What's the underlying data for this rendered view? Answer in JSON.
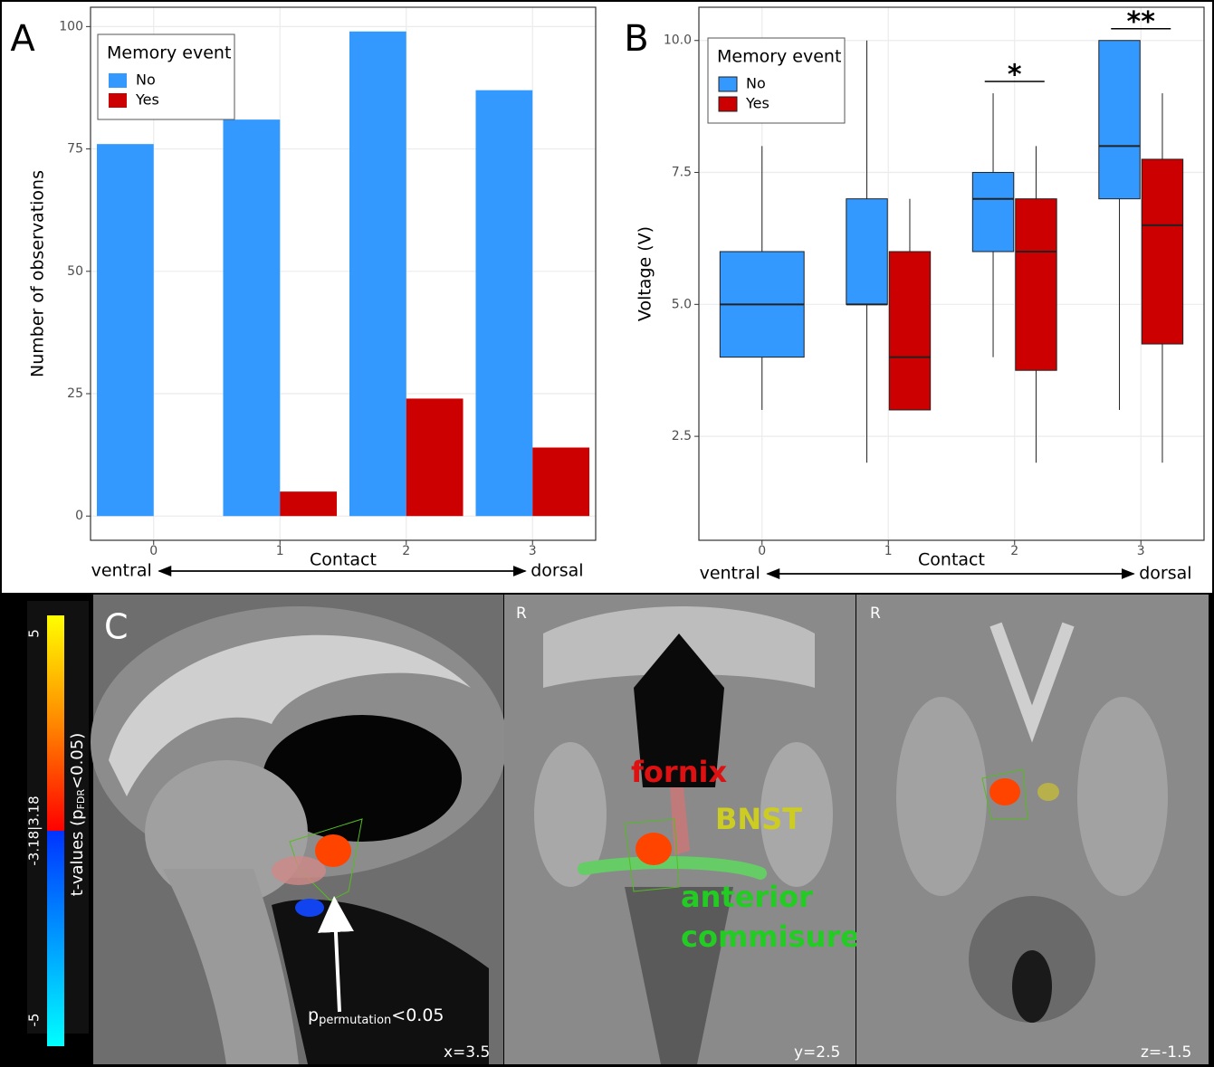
{
  "chart_data": [
    {
      "type": "bar",
      "panel_label": "A",
      "categories": [
        "0",
        "1",
        "2",
        "3"
      ],
      "series": [
        {
          "name": "No",
          "color": "#3399ff",
          "values": [
            76,
            81,
            99,
            87
          ]
        },
        {
          "name": "Yes",
          "color": "#cc0000",
          "values": [
            0,
            5,
            24,
            14
          ]
        }
      ],
      "ylim": [
        -4.95,
        103.95
      ],
      "yticks": [
        0,
        25,
        50,
        75,
        100
      ],
      "grid": true,
      "y_label": "Number of observations",
      "x_label": "Contact",
      "x_annotations": [
        "ventral",
        "dorsal"
      ],
      "legend_title": "Memory event",
      "legend": "top-left"
    },
    {
      "type": "box",
      "panel_label": "B",
      "categories": [
        "0",
        "1",
        "2",
        "3"
      ],
      "series": [
        {
          "name": "No",
          "color": "#3399ff",
          "values": [
            {
              "min": 3,
              "q1": 4,
              "median": 5,
              "q3": 6,
              "max": 8
            },
            {
              "min": 2,
              "q1": 5,
              "median": 5,
              "q3": 7,
              "max": 10
            },
            {
              "min": 4,
              "q1": 6,
              "median": 7,
              "q3": 7.5,
              "max": 9
            },
            {
              "min": 3,
              "q1": 7,
              "median": 8,
              "q3": 10,
              "max": 10
            }
          ]
        },
        {
          "name": "Yes",
          "color": "#cc0000",
          "values": [
            null,
            {
              "min": 3,
              "q1": 3,
              "median": 4,
              "q3": 6,
              "max": 7
            },
            {
              "min": 2,
              "q1": 3.75,
              "median": 6,
              "q3": 7,
              "max": 8
            },
            {
              "min": 2,
              "q1": 4.25,
              "median": 6.5,
              "q3": 7.75,
              "max": 9
            }
          ]
        }
      ],
      "ylim": [
        0.53,
        10.63
      ],
      "yticks": [
        2.5,
        {
          "value": 5,
          "label": "5.0"
        },
        7.5,
        {
          "value": 10,
          "label": "10.0"
        }
      ],
      "grid": true,
      "y_label": "Voltage (V)",
      "x_label": "Contact",
      "x_annotations": [
        "ventral",
        "dorsal"
      ],
      "legend_title": "Memory event",
      "legend": "top-left",
      "significance": [
        {
          "category": "2",
          "label": "*"
        },
        {
          "category": "3",
          "label": "**"
        }
      ]
    }
  ],
  "brain_panel": {
    "panel_label": "C",
    "colorbar_ticks": [
      "5",
      "-3.18|3.18",
      "-5"
    ],
    "colorbar_label": [
      "t-values (p",
      "FDR",
      "<0.05)"
    ],
    "arrow_label": [
      "p",
      "permutation",
      "<0.05"
    ],
    "orientation_labels": [
      "R",
      "R"
    ],
    "slice_labels": [
      "x=3.5",
      "y=2.5",
      "z=-1.5"
    ],
    "structures": {
      "fornix": "fornix",
      "bnst": "BNST",
      "anterior": "anterior",
      "commisure": "commisure"
    }
  }
}
